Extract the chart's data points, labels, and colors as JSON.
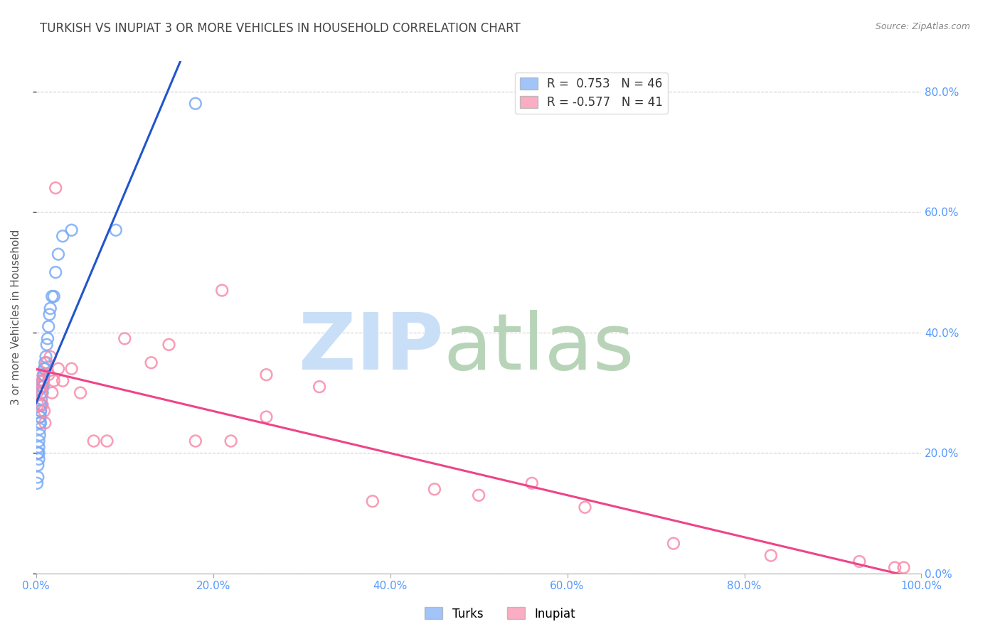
{
  "title": "TURKISH VS INUPIAT 3 OR MORE VEHICLES IN HOUSEHOLD CORRELATION CHART",
  "source": "Source: ZipAtlas.com",
  "ylabel": "3 or more Vehicles in Household",
  "xlim": [
    0.0,
    1.0
  ],
  "ylim": [
    0.0,
    0.85
  ],
  "x_ticks": [
    0.0,
    0.2,
    0.4,
    0.6,
    0.8,
    1.0
  ],
  "x_tick_labels": [
    "0.0%",
    "20.0%",
    "40.0%",
    "60.0%",
    "80.0%",
    "100.0%"
  ],
  "y_ticks": [
    0.0,
    0.2,
    0.4,
    0.6,
    0.8
  ],
  "y_tick_labels": [
    "0.0%",
    "20.0%",
    "40.0%",
    "60.0%",
    "80.0%"
  ],
  "legend_entries": [
    {
      "label": "R =  0.753   N = 46",
      "color": "#7aabf7"
    },
    {
      "label": "R = -0.577   N = 41",
      "color": "#f98baa"
    }
  ],
  "turks_color": "#7aabf7",
  "inupiat_color": "#f98baa",
  "trend_turks_color": "#2255cc",
  "trend_inupiat_color": "#ee4488",
  "watermark_ZIP_color": "#c8dff7",
  "watermark_atlas_color": "#b8d4b8",
  "background_color": "#ffffff",
  "grid_color": "#bbbbbb",
  "axis_tick_color": "#5599ff",
  "title_color": "#444444",
  "source_color": "#888888",
  "turks_x": [
    0.001,
    0.002,
    0.002,
    0.002,
    0.003,
    0.003,
    0.003,
    0.003,
    0.004,
    0.004,
    0.004,
    0.004,
    0.005,
    0.005,
    0.005,
    0.005,
    0.005,
    0.006,
    0.006,
    0.006,
    0.006,
    0.006,
    0.007,
    0.007,
    0.007,
    0.008,
    0.008,
    0.008,
    0.009,
    0.009,
    0.01,
    0.01,
    0.011,
    0.012,
    0.013,
    0.014,
    0.015,
    0.016,
    0.018,
    0.02,
    0.022,
    0.025,
    0.03,
    0.04,
    0.09,
    0.18
  ],
  "turks_y": [
    0.15,
    0.18,
    0.16,
    0.2,
    0.19,
    0.21,
    0.22,
    0.2,
    0.24,
    0.25,
    0.23,
    0.26,
    0.26,
    0.27,
    0.25,
    0.28,
    0.27,
    0.28,
    0.3,
    0.29,
    0.31,
    0.3,
    0.31,
    0.32,
    0.3,
    0.32,
    0.33,
    0.31,
    0.34,
    0.33,
    0.34,
    0.35,
    0.36,
    0.38,
    0.39,
    0.41,
    0.43,
    0.44,
    0.46,
    0.46,
    0.5,
    0.53,
    0.56,
    0.57,
    0.57,
    0.78
  ],
  "inupiat_x": [
    0.001,
    0.002,
    0.003,
    0.004,
    0.005,
    0.006,
    0.007,
    0.008,
    0.009,
    0.01,
    0.012,
    0.014,
    0.016,
    0.018,
    0.02,
    0.022,
    0.025,
    0.03,
    0.04,
    0.05,
    0.065,
    0.08,
    0.1,
    0.13,
    0.15,
    0.18,
    0.21,
    0.22,
    0.26,
    0.26,
    0.32,
    0.38,
    0.45,
    0.5,
    0.56,
    0.62,
    0.72,
    0.83,
    0.93,
    0.97,
    0.98
  ],
  "inupiat_y": [
    0.3,
    0.28,
    0.32,
    0.33,
    0.31,
    0.3,
    0.28,
    0.32,
    0.27,
    0.25,
    0.35,
    0.33,
    0.36,
    0.3,
    0.32,
    0.64,
    0.34,
    0.32,
    0.34,
    0.3,
    0.22,
    0.22,
    0.39,
    0.35,
    0.38,
    0.22,
    0.47,
    0.22,
    0.26,
    0.33,
    0.31,
    0.12,
    0.14,
    0.13,
    0.15,
    0.11,
    0.05,
    0.03,
    0.02,
    0.01,
    0.01
  ]
}
